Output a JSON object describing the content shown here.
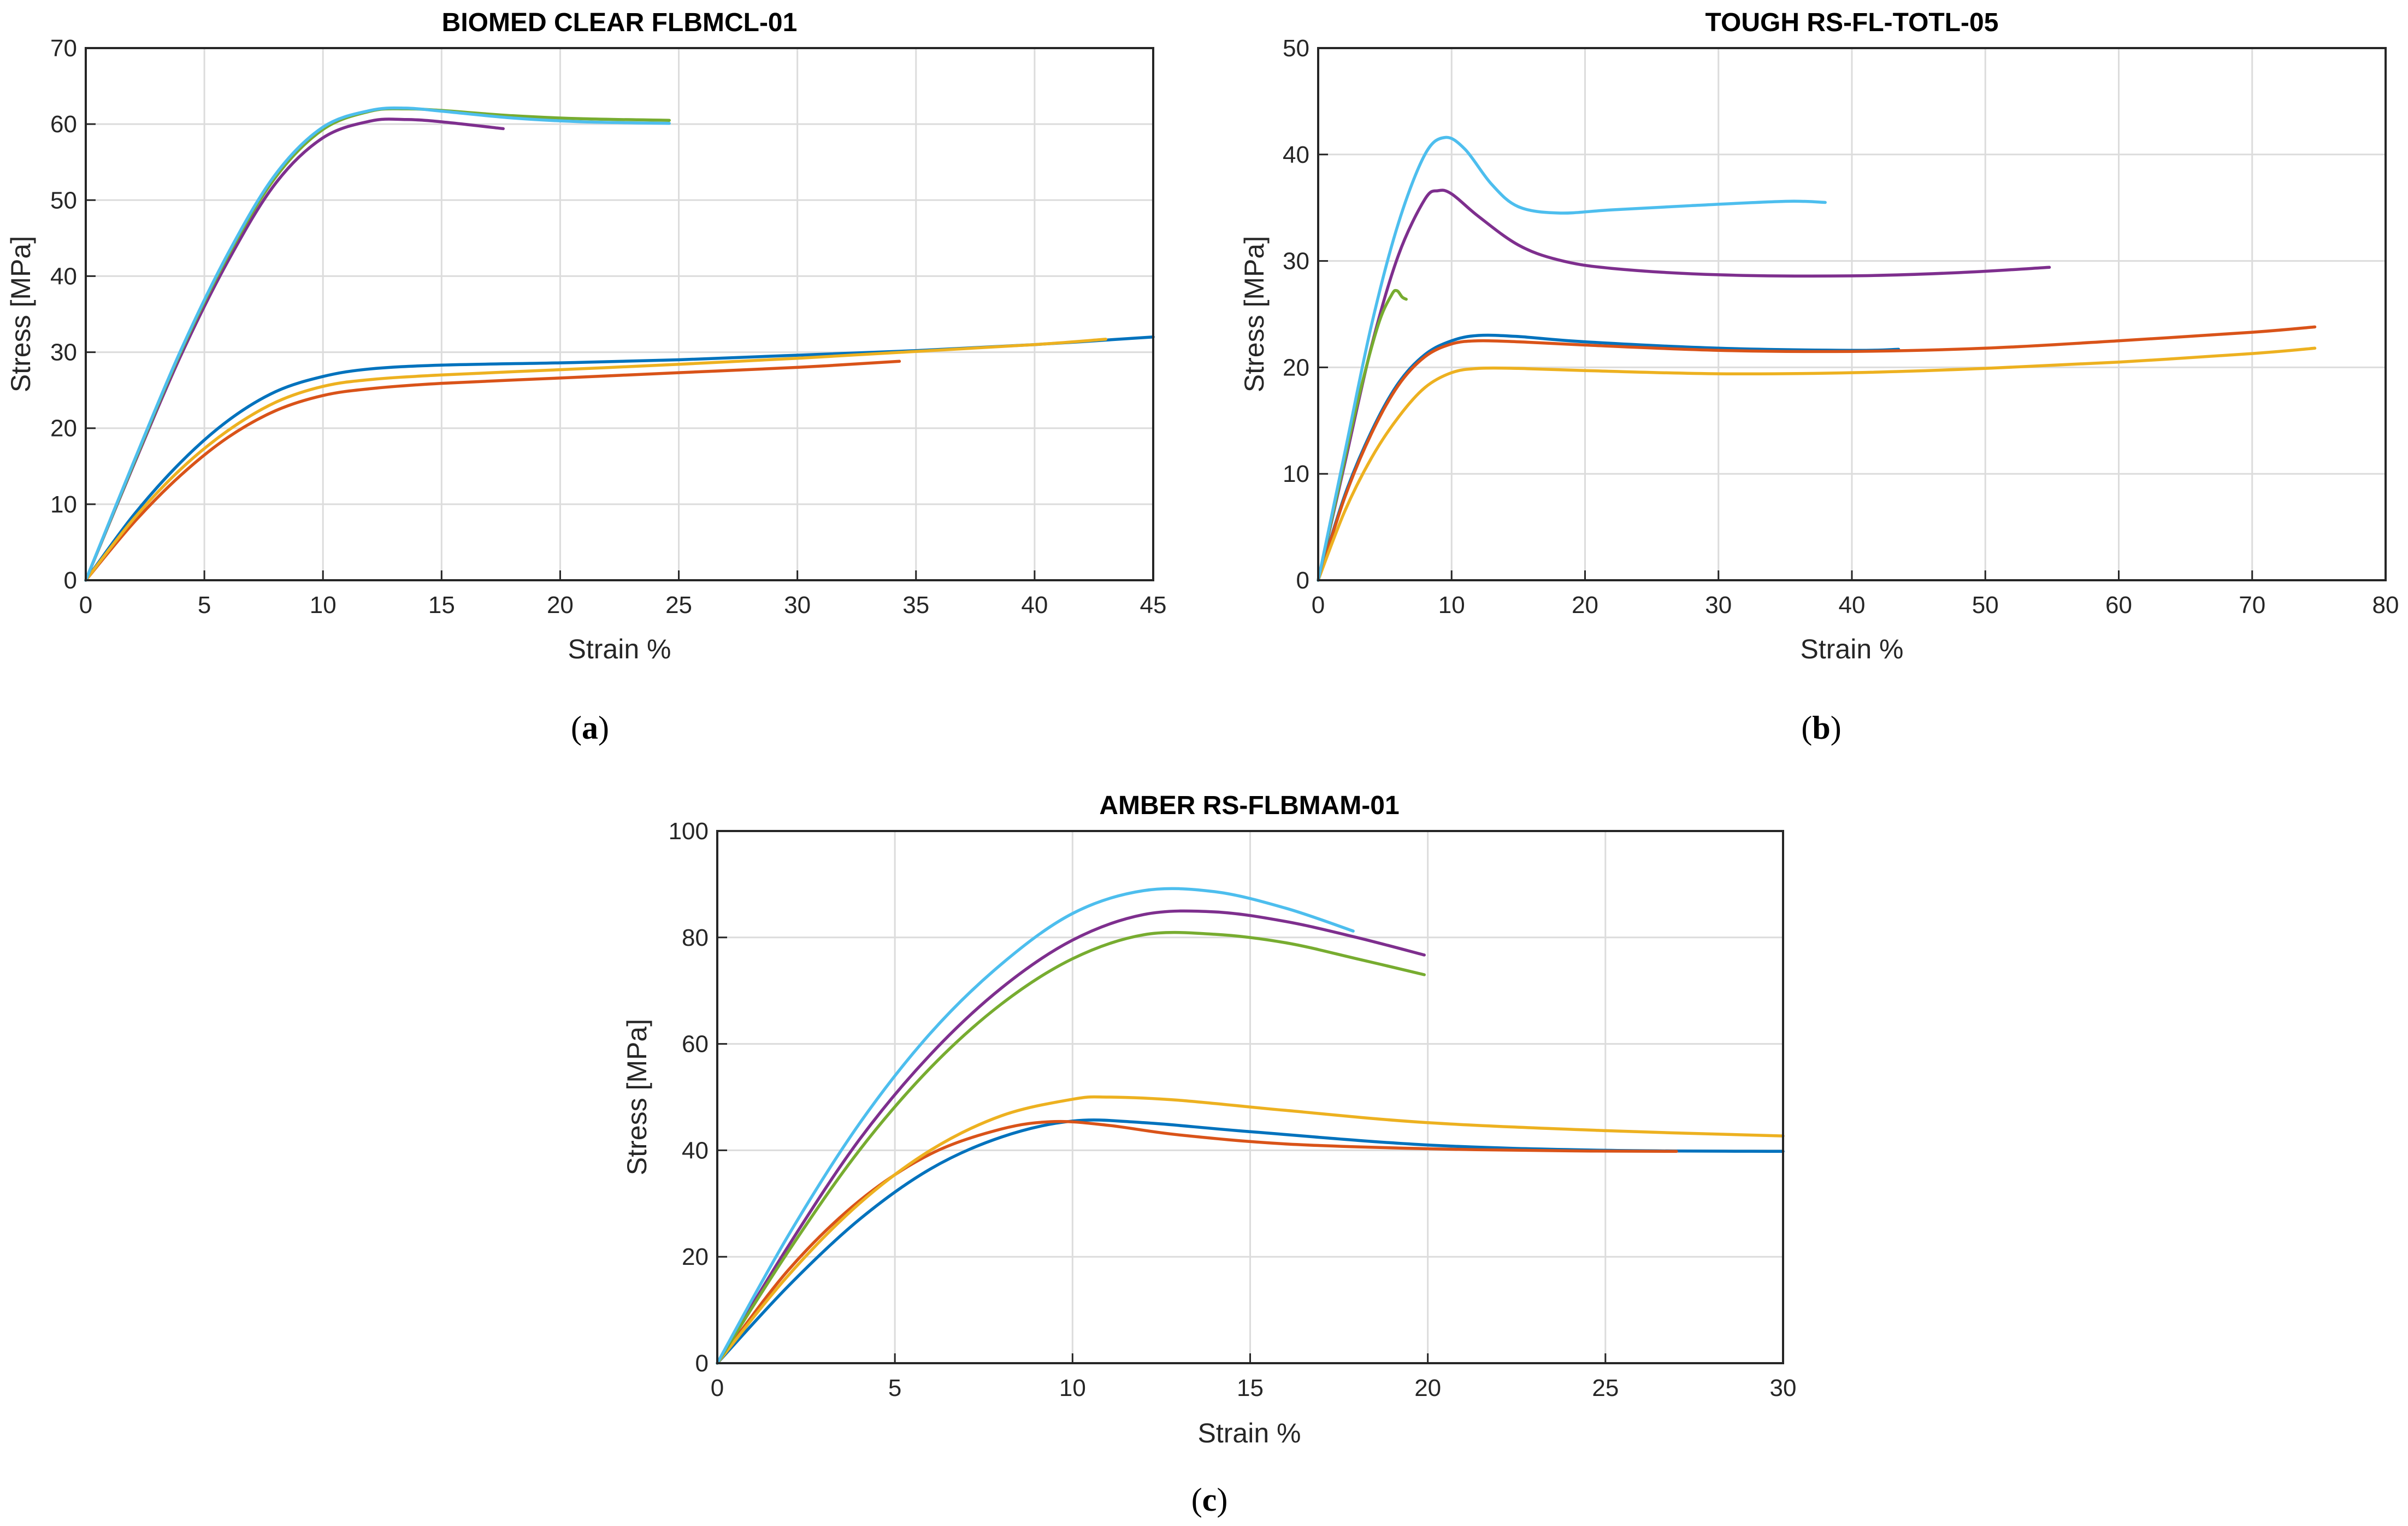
{
  "chart_data": [
    {
      "type": "line",
      "panel_label": {
        "open": "(",
        "letter": "a",
        "close": ")"
      },
      "title": "BIOMED CLEAR FLBMCL-01",
      "xlabel": "Strain %",
      "ylabel": "Stress [MPa]",
      "xlim": [
        0,
        45
      ],
      "ylim": [
        0,
        70
      ],
      "xticks": [
        0,
        5,
        10,
        15,
        20,
        25,
        30,
        35,
        40,
        45
      ],
      "yticks": [
        0,
        10,
        20,
        30,
        40,
        50,
        60,
        70
      ],
      "grid": true,
      "series": [
        {
          "name": "blue",
          "color": "#0072BD",
          "x": [
            0,
            2,
            4,
            6,
            8,
            10,
            12,
            15,
            20,
            25,
            30,
            35,
            40,
            45
          ],
          "y": [
            0,
            8.5,
            15.5,
            21,
            24.8,
            26.8,
            27.8,
            28.3,
            28.6,
            29,
            29.6,
            30.2,
            31,
            32
          ]
        },
        {
          "name": "orange",
          "color": "#D95319",
          "x": [
            0,
            2,
            4,
            6,
            8,
            10,
            12,
            15,
            20,
            25,
            30,
            34.3
          ],
          "y": [
            0,
            7.5,
            13.8,
            18.8,
            22.3,
            24.3,
            25.2,
            25.9,
            26.6,
            27.3,
            28,
            28.8
          ]
        },
        {
          "name": "yellow",
          "color": "#EDB120",
          "x": [
            0,
            2,
            4,
            6,
            8,
            10,
            12,
            15,
            20,
            25,
            30,
            35,
            40,
            43
          ],
          "y": [
            0,
            8,
            14.6,
            19.7,
            23.4,
            25.5,
            26.4,
            27,
            27.7,
            28.4,
            29.2,
            30.1,
            31,
            31.7
          ]
        },
        {
          "name": "purple",
          "color": "#7E2F8E",
          "x": [
            0,
            2,
            4,
            6,
            8,
            10,
            12,
            13.5,
            15,
            17.6
          ],
          "y": [
            0,
            15,
            29.5,
            42,
            52.2,
            58.2,
            60.4,
            60.6,
            60.3,
            59.4
          ]
        },
        {
          "name": "green",
          "color": "#77AC30",
          "x": [
            0,
            2,
            4,
            6,
            8,
            10,
            12,
            13.5,
            15,
            18,
            21,
            24.6
          ],
          "y": [
            0,
            15.2,
            30,
            42.7,
            53,
            59.3,
            61.7,
            62,
            61.8,
            61.1,
            60.7,
            60.5
          ]
        },
        {
          "name": "light-blue",
          "color": "#4DBEEE",
          "x": [
            0,
            2,
            4,
            6,
            8,
            10,
            12,
            13.5,
            15,
            18,
            21,
            24.6
          ],
          "y": [
            0,
            15.4,
            30.2,
            43,
            53.4,
            59.6,
            61.8,
            62.1,
            61.7,
            60.8,
            60.3,
            60.1
          ]
        }
      ]
    },
    {
      "type": "line",
      "panel_label": {
        "open": "(",
        "letter": "b",
        "close": ")"
      },
      "title": "TOUGH RS-FL-TOTL-05",
      "xlabel": "Strain %",
      "ylabel": "Stress [MPa]",
      "xlim": [
        0,
        80
      ],
      "ylim": [
        0,
        50
      ],
      "xticks": [
        0,
        10,
        20,
        30,
        40,
        50,
        60,
        70,
        80
      ],
      "yticks": [
        0,
        10,
        20,
        30,
        40,
        50
      ],
      "grid": true,
      "series": [
        {
          "name": "blue",
          "color": "#0072BD",
          "x": [
            0,
            2,
            4,
            6,
            8,
            10,
            12,
            15,
            20,
            30,
            40,
            43.5
          ],
          "y": [
            0,
            8,
            14,
            18.5,
            21.2,
            22.5,
            23,
            22.9,
            22.4,
            21.8,
            21.6,
            21.7
          ]
        },
        {
          "name": "orange",
          "color": "#D95319",
          "x": [
            0,
            2,
            4,
            6,
            8,
            10,
            12,
            15,
            20,
            30,
            40,
            50,
            60,
            70,
            74.7
          ],
          "y": [
            0,
            7.8,
            13.8,
            18.3,
            21,
            22.2,
            22.5,
            22.4,
            22.1,
            21.6,
            21.5,
            21.8,
            22.5,
            23.3,
            23.8
          ]
        },
        {
          "name": "yellow",
          "color": "#EDB120",
          "x": [
            0,
            2,
            4,
            6,
            8,
            10,
            12,
            15,
            20,
            30,
            40,
            50,
            60,
            70,
            74.7
          ],
          "y": [
            0,
            6.5,
            11.5,
            15.3,
            18.1,
            19.5,
            19.9,
            19.9,
            19.7,
            19.4,
            19.5,
            19.9,
            20.5,
            21.3,
            21.8
          ]
        },
        {
          "name": "purple",
          "color": "#7E2F8E",
          "x": [
            0,
            2,
            4,
            6,
            8,
            9,
            10,
            12,
            15,
            18,
            22,
            30,
            40,
            48,
            54.8
          ],
          "y": [
            0,
            11,
            22,
            30.5,
            35.8,
            36.6,
            36.3,
            34.2,
            31.5,
            30.1,
            29.3,
            28.7,
            28.6,
            28.9,
            29.4
          ]
        },
        {
          "name": "green",
          "color": "#77AC30",
          "x": [
            0,
            1.5,
            3,
            4.5,
            5.5,
            5.9,
            6.3,
            6.6
          ],
          "y": [
            0,
            8.5,
            17,
            24,
            26.8,
            27.2,
            26.6,
            26.4
          ]
        },
        {
          "name": "light-blue",
          "color": "#4DBEEE",
          "x": [
            0,
            2,
            4,
            6,
            8,
            9.5,
            11,
            13,
            15,
            18,
            22,
            28,
            35,
            38
          ],
          "y": [
            0,
            12,
            24,
            33.5,
            40,
            41.6,
            40.5,
            37.2,
            35.1,
            34.5,
            34.8,
            35.2,
            35.6,
            35.5
          ]
        }
      ]
    },
    {
      "type": "line",
      "panel_label": {
        "open": "(",
        "letter": "c",
        "close": ")"
      },
      "title": "AMBER RS-FLBMAM-01",
      "xlabel": "Strain %",
      "ylabel": "Stress [MPa]",
      "xlim": [
        0,
        30
      ],
      "ylim": [
        0,
        100
      ],
      "xticks": [
        0,
        5,
        10,
        15,
        20,
        25,
        30
      ],
      "yticks": [
        0,
        20,
        40,
        60,
        80,
        100
      ],
      "grid": true,
      "series": [
        {
          "name": "blue",
          "color": "#0072BD",
          "x": [
            0,
            2,
            4,
            6,
            8,
            10,
            12,
            15,
            20,
            25,
            30
          ],
          "y": [
            0,
            14.5,
            27,
            36.5,
            42.5,
            45.5,
            45.2,
            43.5,
            41,
            40,
            39.8
          ]
        },
        {
          "name": "orange",
          "color": "#D95319",
          "x": [
            0,
            2,
            4,
            6,
            8,
            9.5,
            11,
            13,
            16,
            20,
            24,
            27
          ],
          "y": [
            0,
            17.5,
            30.5,
            39.3,
            44,
            45.4,
            44.7,
            42.9,
            41.2,
            40.3,
            39.9,
            39.8
          ]
        },
        {
          "name": "yellow",
          "color": "#EDB120",
          "x": [
            0,
            2,
            4,
            6,
            8,
            10,
            11,
            13,
            16,
            20,
            25,
            30
          ],
          "y": [
            0,
            16.5,
            30,
            40,
            46.5,
            49.6,
            50,
            49.4,
            47.5,
            45.2,
            43.7,
            42.7
          ]
        },
        {
          "name": "purple",
          "color": "#7E2F8E",
          "x": [
            0,
            2,
            4,
            6,
            8,
            10,
            12,
            14,
            16,
            18,
            19.9
          ],
          "y": [
            0,
            22,
            42,
            58,
            70.5,
            79.5,
            84.3,
            84.8,
            83,
            80,
            76.7
          ]
        },
        {
          "name": "green",
          "color": "#77AC30",
          "x": [
            0,
            2,
            4,
            6,
            8,
            10,
            12,
            14,
            16,
            18,
            19.9
          ],
          "y": [
            0,
            21,
            40,
            55.5,
            67.5,
            76,
            80.5,
            80.6,
            79,
            76,
            73
          ]
        },
        {
          "name": "light-blue",
          "color": "#4DBEEE",
          "x": [
            0,
            2,
            4,
            6,
            8,
            10,
            12,
            14,
            16,
            17.9
          ],
          "y": [
            0,
            24,
            45,
            62,
            75,
            84.5,
            88.8,
            88.6,
            85.5,
            81.2
          ]
        }
      ]
    }
  ]
}
